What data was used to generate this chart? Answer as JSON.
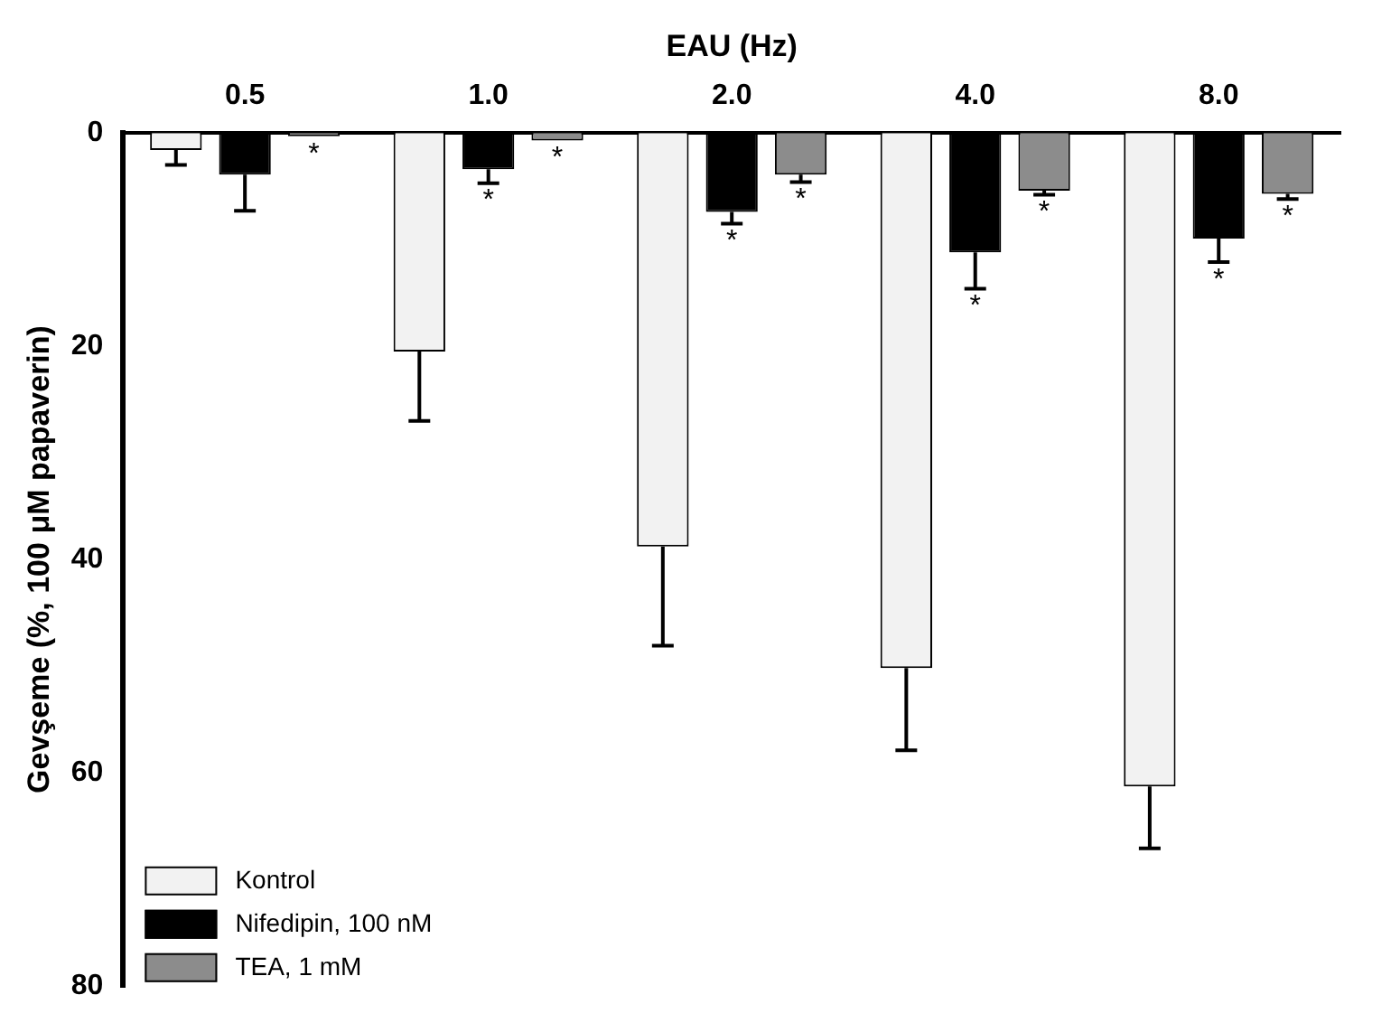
{
  "chart_data": {
    "type": "bar",
    "xlabel": "EAU (Hz)",
    "ylabel": "Gevşeme (%, 100 μM papaverin)",
    "categories": [
      "0.5",
      "1.0",
      "2.0",
      "4.0",
      "8.0"
    ],
    "series": [
      {
        "name": "Kontrol",
        "color": "#f2f2f2",
        "values": [
          1.6,
          20.5,
          38.8,
          50.2,
          61.3
        ],
        "errors": [
          [
            1.6,
            3.0
          ],
          [
            20.5,
            27.0
          ],
          [
            38.8,
            48.1
          ],
          [
            50.2,
            57.9
          ],
          [
            61.3,
            67.1
          ]
        ]
      },
      {
        "name": "Nifedipin, 100 nM",
        "color": "#000000",
        "values": [
          3.9,
          3.4,
          7.4,
          11.2,
          9.9
        ],
        "errors": [
          [
            3.9,
            7.3
          ],
          [
            3.4,
            4.7
          ],
          [
            7.4,
            8.5
          ],
          [
            11.2,
            14.6
          ],
          [
            9.9,
            12.1
          ]
        ],
        "value_labels": [
          null,
          "*",
          "*",
          "*",
          "*"
        ]
      },
      {
        "name": "TEA, 1 mM",
        "color": "#8c8c8c",
        "values": [
          0.3,
          0.7,
          3.9,
          5.4,
          5.7
        ],
        "errors": [
          null,
          null,
          [
            3.9,
            4.6
          ],
          [
            5.4,
            5.8
          ],
          [
            5.7,
            6.2
          ]
        ],
        "value_labels": [
          "*",
          "*",
          "*",
          "*",
          "*"
        ]
      }
    ],
    "ylim": [
      80,
      0
    ],
    "yticks": [
      0,
      20,
      40,
      60,
      80
    ],
    "grid": false,
    "legend": "bottom left"
  }
}
